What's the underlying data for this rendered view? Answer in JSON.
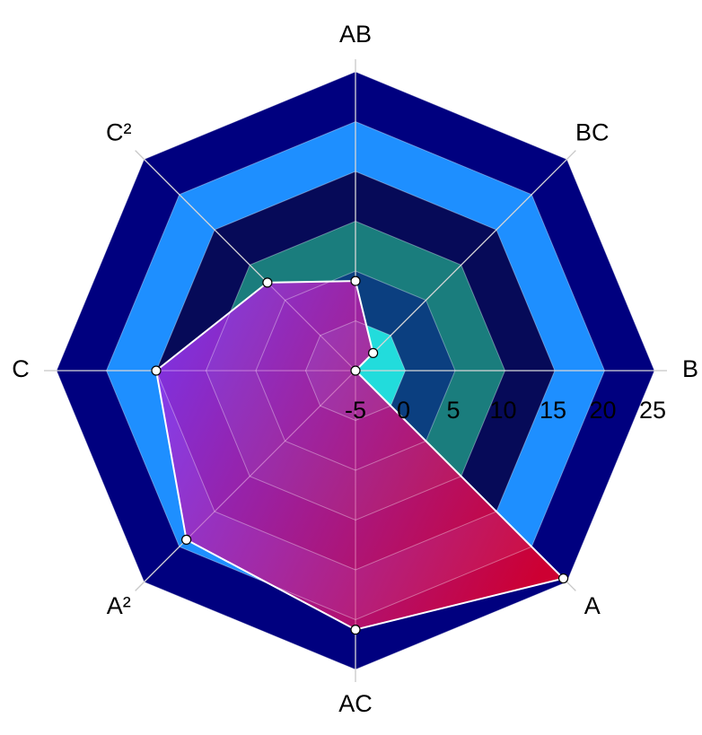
{
  "chart_data": {
    "type": "radar",
    "categories": [
      "AB",
      "BC",
      "B",
      "A",
      "AC",
      "A²",
      "C",
      "C²"
    ],
    "values": [
      4,
      -2.5,
      -5,
      24.5,
      21,
      19,
      15,
      7.5
    ],
    "rlim": [
      -5,
      25
    ],
    "rticks": [
      -5,
      0,
      5,
      10,
      15,
      20,
      25
    ],
    "band_colors": [
      "#22dcdc",
      "#0b3f80",
      "#1a7d7d",
      "#060a58",
      "#1e8fff",
      "#00007f"
    ],
    "colors": [
      "#8f34e8",
      "#e3002a"
    ],
    "grid": true
  }
}
